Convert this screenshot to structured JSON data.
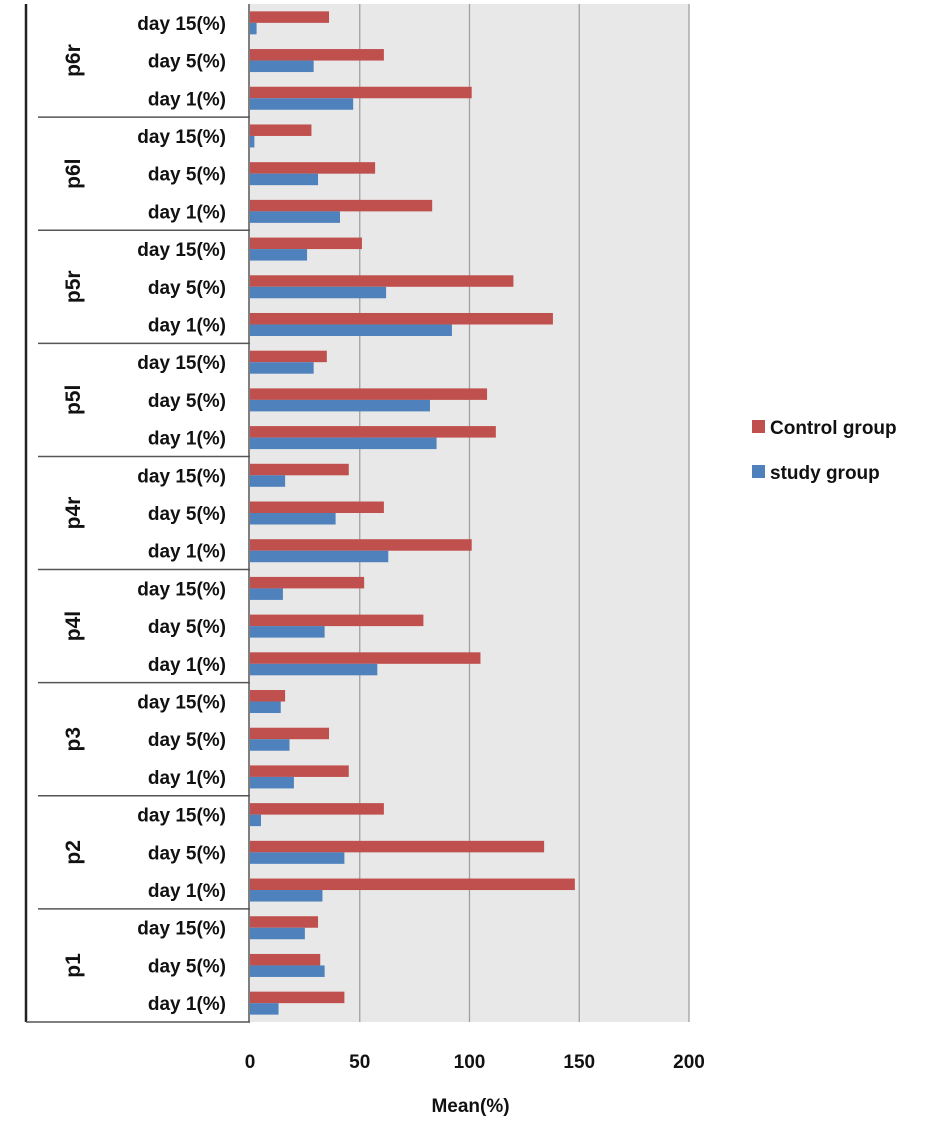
{
  "chart_data": {
    "type": "bar",
    "orientation": "horizontal",
    "xlabel": "Mean(%)",
    "xlim": [
      0,
      200
    ],
    "xticks": [
      0,
      50,
      100,
      150,
      200
    ],
    "grid": "vertical gridlines",
    "legend_position": "right",
    "colors": {
      "Control group": "#c0504d",
      "study group": "#4f81bd",
      "plot_background": "#e8e8e8"
    },
    "groups": [
      {
        "name": "p6r",
        "categories": [
          "day 15(%)",
          "day 5(%)",
          "day 1(%)"
        ],
        "control": [
          36,
          61,
          101
        ],
        "study": [
          3,
          29,
          47
        ]
      },
      {
        "name": "p6l",
        "categories": [
          "day 15(%)",
          "day 5(%)",
          "day 1(%)"
        ],
        "control": [
          28,
          57,
          83
        ],
        "study": [
          2,
          31,
          41
        ]
      },
      {
        "name": "p5r",
        "categories": [
          "day 15(%)",
          "day 5(%)",
          "day 1(%)"
        ],
        "control": [
          51,
          120,
          138
        ],
        "study": [
          26,
          62,
          92
        ]
      },
      {
        "name": "p5l",
        "categories": [
          "day 15(%)",
          "day 5(%)",
          "day 1(%)"
        ],
        "control": [
          35,
          108,
          112
        ],
        "study": [
          29,
          82,
          85
        ]
      },
      {
        "name": "p4r",
        "categories": [
          "day 15(%)",
          "day 5(%)",
          "day 1(%)"
        ],
        "control": [
          45,
          61,
          101
        ],
        "study": [
          16,
          39,
          63
        ]
      },
      {
        "name": "p4l",
        "categories": [
          "day 15(%)",
          "day 5(%)",
          "day 1(%)"
        ],
        "control": [
          52,
          79,
          105
        ],
        "study": [
          15,
          34,
          58
        ]
      },
      {
        "name": "p3",
        "categories": [
          "day 15(%)",
          "day 5(%)",
          "day 1(%)"
        ],
        "control": [
          16,
          36,
          45
        ],
        "study": [
          14,
          18,
          20
        ]
      },
      {
        "name": "p2",
        "categories": [
          "day 15(%)",
          "day 5(%)",
          "day 1(%)"
        ],
        "control": [
          61,
          134,
          148
        ],
        "study": [
          5,
          43,
          33
        ]
      },
      {
        "name": "p1",
        "categories": [
          "day 15(%)",
          "day 5(%)",
          "day 1(%)"
        ],
        "control": [
          31,
          32,
          43
        ],
        "study": [
          25,
          34,
          13
        ]
      }
    ],
    "series": [
      {
        "name": "Control group",
        "key": "control"
      },
      {
        "name": "study group",
        "key": "study"
      }
    ]
  }
}
